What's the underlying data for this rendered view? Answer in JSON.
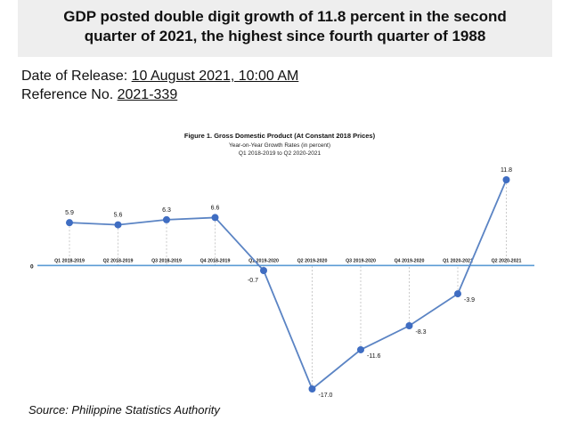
{
  "headline": {
    "line1": "GDP posted double digit growth of 11.8 percent in the second",
    "line2": "quarter of 2021, the highest since fourth quarter of 1988"
  },
  "release": {
    "date_label": "Date of Release: ",
    "date_value": "10 August 2021, 10:00 AM",
    "ref_label": "Reference No. ",
    "ref_value": "2021-339"
  },
  "source": "Source: Philippine Statistics Authority",
  "colors": {
    "line": "#5b84c4",
    "marker": "#3f6dc2",
    "axis": "#5b9bd5",
    "dash": "#bfbfbf"
  },
  "chart_data": {
    "type": "line",
    "title": "Figure 1. Gross Domestic Product (At Constant 2018 Prices)",
    "subtitle1": "Year-on-Year Growth Rates (in percent)",
    "subtitle2": "Q1 2018-2019 to Q2 2020-2021",
    "categories": [
      "Q1 2018-2019",
      "Q2 2018-2019",
      "Q3 2018-2019",
      "Q4 2018-2019",
      "Q1 2019-2020",
      "Q2 2019-2020",
      "Q3 2019-2020",
      "Q4 2019-2020",
      "Q1 2020-2021",
      "Q2 2020-2021"
    ],
    "values": [
      5.9,
      5.6,
      6.3,
      6.6,
      -0.7,
      -17.0,
      -11.6,
      -8.3,
      -3.9,
      11.8
    ],
    "data_labels": [
      "5.9",
      "5.6",
      "6.3",
      "6.6",
      "-0.7",
      "-17.0",
      "-11.6",
      "-8.3",
      "-3.9",
      "11.8"
    ],
    "zero_label": "0",
    "ylim": [
      -17.0,
      11.8
    ],
    "grid": false,
    "legend": "none"
  }
}
